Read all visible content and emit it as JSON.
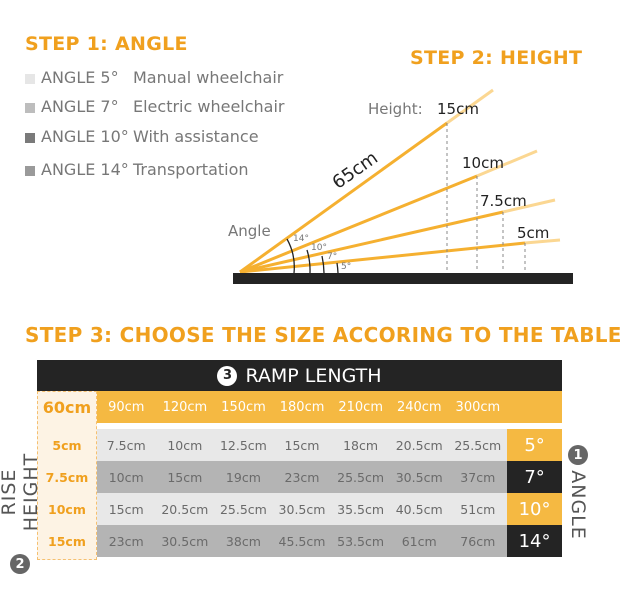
{
  "step1": {
    "title": "STEP 1: ANGLE",
    "items": [
      {
        "angle": "ANGLE 5°",
        "use": "Manual wheelchair",
        "color": "#e6e6e6"
      },
      {
        "angle": "ANGLE 7°",
        "use": "Electric wheelchair",
        "color": "#bdbdbd"
      },
      {
        "angle": "ANGLE 10°",
        "use": "With assistance",
        "color": "#7a7a7a"
      },
      {
        "angle": "ANGLE 14°",
        "use": "Transportation",
        "color": "#9a9a9a"
      }
    ]
  },
  "step2": {
    "title": "STEP 2: HEIGHT",
    "height_label": "Height:",
    "heights": [
      "15cm",
      "10cm",
      "7.5cm",
      "5cm"
    ],
    "length": "65cm",
    "angle_label": "Angle",
    "angles": [
      "14°",
      "10°",
      "7°",
      "5°"
    ]
  },
  "step3": {
    "title": "STEP 3: CHOOSE THE SIZE ACCORING TO THE TABLE",
    "header_num": "3",
    "header": "RAMP LENGTH",
    "lengths": [
      "60cm",
      "90cm",
      "120cm",
      "150cm",
      "180cm",
      "210cm",
      "240cm",
      "300cm"
    ],
    "rise_label": "RISE HEIGHT",
    "rise_num": "2",
    "angle_label": "ANGLE",
    "angle_num": "1",
    "rows": [
      {
        "rise": "5cm",
        "values": [
          "7.5cm",
          "10cm",
          "12.5cm",
          "15cm",
          "18cm",
          "20.5cm",
          "25.5cm"
        ],
        "angle": "5°"
      },
      {
        "rise": "7.5cm",
        "values": [
          "10cm",
          "15cm",
          "19cm",
          "23cm",
          "25.5cm",
          "30.5cm",
          "37cm"
        ],
        "angle": "7°"
      },
      {
        "rise": "10cm",
        "values": [
          "15cm",
          "20.5cm",
          "25.5cm",
          "30.5cm",
          "35.5cm",
          "40.5cm",
          "51cm"
        ],
        "angle": "10°"
      },
      {
        "rise": "15cm",
        "values": [
          "23cm",
          "30.5cm",
          "38cm",
          "45.5cm",
          "53.5cm",
          "61cm",
          "76cm"
        ],
        "angle": "14°"
      }
    ]
  },
  "colors": {
    "accent": "#f5b942",
    "dark": "#242424",
    "row_light": "#e8e8e8",
    "row_dark": "#b4b4b4"
  }
}
